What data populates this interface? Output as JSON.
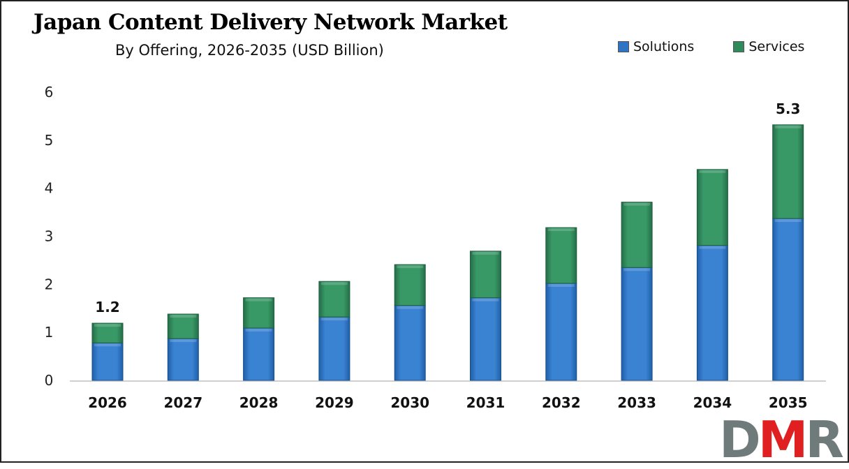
{
  "chart_data": {
    "type": "bar",
    "stacked": true,
    "title": "Japan Content Delivery Network Market",
    "subtitle": "By Offering, 2026-2035 (USD Billion)",
    "categories": [
      "2026",
      "2027",
      "2028",
      "2029",
      "2030",
      "2031",
      "2032",
      "2033",
      "2034",
      "2035"
    ],
    "series": [
      {
        "name": "Solutions",
        "color": "#2f75c4",
        "values": [
          0.78,
          0.87,
          1.09,
          1.32,
          1.56,
          1.72,
          2.02,
          2.35,
          2.81,
          3.37
        ]
      },
      {
        "name": "Services",
        "color": "#2f8a5c",
        "values": [
          0.41,
          0.51,
          0.63,
          0.74,
          0.85,
          0.97,
          1.16,
          1.36,
          1.58,
          1.95
        ]
      }
    ],
    "data_labels": [
      {
        "category": "2026",
        "text": "1.2"
      },
      {
        "category": "2035",
        "text": "5.3"
      }
    ],
    "ylim": [
      0,
      6
    ],
    "yticks": [
      "0",
      "1",
      "2",
      "3",
      "4",
      "5",
      "6"
    ],
    "grid": false,
    "legend": "top-right",
    "xlabel": "",
    "ylabel": ""
  },
  "logo": {
    "text_d": "D",
    "text_m": "M",
    "text_r": "R",
    "gray": "#6f7b7b",
    "red": "#e02020"
  }
}
